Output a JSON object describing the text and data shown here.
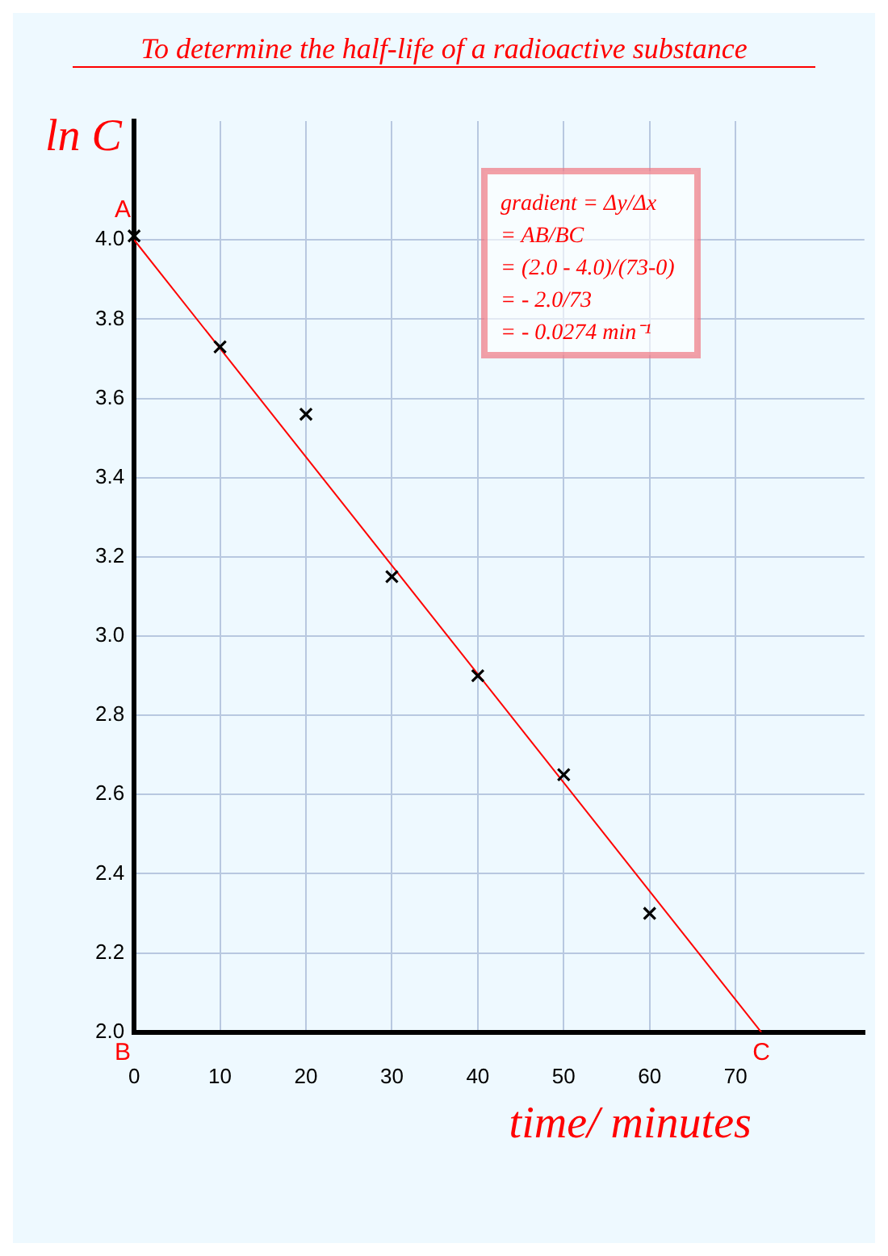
{
  "chart_data": {
    "type": "scatter",
    "title": "To determine the half-life of a radioactive substance",
    "xlabel": "time/ minutes",
    "ylabel": "ln C",
    "series": [
      {
        "type": "scatter",
        "color": "#000000",
        "marker": "cross",
        "x": [
          0,
          10,
          20,
          30,
          40,
          50,
          60
        ],
        "values": [
          4.01,
          3.73,
          3.56,
          3.15,
          2.9,
          2.65,
          2.3
        ]
      },
      {
        "type": "line",
        "color": "#ff0000",
        "marker": "none",
        "line_style": "solid",
        "x": [
          0,
          73
        ],
        "values": [
          4.0,
          2.0
        ]
      }
    ],
    "xlim": [
      0,
      85
    ],
    "xticks": [
      0,
      10,
      20,
      30,
      40,
      50,
      60,
      70
    ],
    "ylim": [
      2.0,
      4.3
    ],
    "yticks": [
      {
        "value": 2.0,
        "label": "2.0"
      },
      {
        "value": 2.2,
        "label": "2.2"
      },
      {
        "value": 2.4,
        "label": "2.4"
      },
      {
        "value": 2.6,
        "label": "2.6"
      },
      {
        "value": 2.8,
        "label": "2.8"
      },
      {
        "value": 3.0,
        "label": "3.0"
      },
      {
        "value": 3.2,
        "label": "3.2"
      },
      {
        "value": 3.4,
        "label": "3.4"
      },
      {
        "value": 3.6,
        "label": "3.6"
      },
      {
        "value": 3.8,
        "label": "3.8"
      },
      {
        "value": 4.0,
        "label": "4.0"
      }
    ],
    "grid": true,
    "legend": false,
    "annotations": [
      {
        "text": "A",
        "x": 0,
        "y": 4.0
      },
      "B",
      {
        "text": "C",
        "x": 73,
        "y": 2.0
      },
      "gradient = Δy/Δx",
      "= AB/BC",
      "= (2.0 - 4.0)/(73-0)",
      "= - 2.0/73",
      "= - 0.0274 min⁻¹"
    ]
  }
}
